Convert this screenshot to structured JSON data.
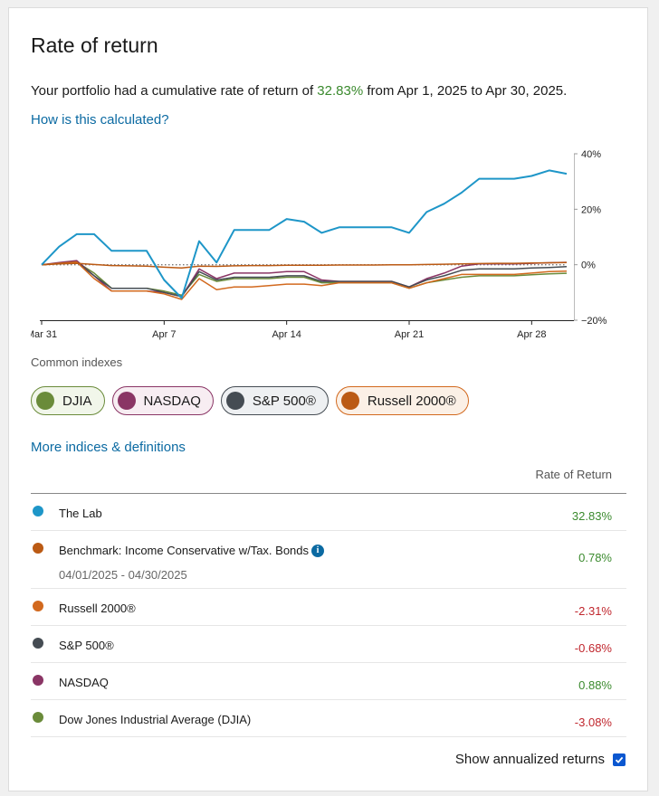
{
  "header": {
    "title": "Rate of return",
    "summary_prefix": "Your portfolio had a cumulative rate of return of ",
    "summary_value": "32.83%",
    "summary_suffix": " from Apr 1, 2025 to Apr 30, 2025.",
    "how_link": "How is this calculated?"
  },
  "chart_data": {
    "type": "line",
    "x_tick_labels": [
      "Mar 31",
      "Apr 7",
      "Apr 14",
      "Apr 21",
      "Apr 28"
    ],
    "y_tick_labels": [
      "40%",
      "20%",
      "0%",
      "−20%"
    ],
    "ylim": [
      -20,
      40
    ],
    "zero_line": true,
    "days": [
      "03/31",
      "04/01",
      "04/02",
      "04/03",
      "04/04",
      "04/05",
      "04/06",
      "04/07",
      "04/08",
      "04/09",
      "04/10",
      "04/11",
      "04/12",
      "04/13",
      "04/14",
      "04/15",
      "04/16",
      "04/17",
      "04/18",
      "04/19",
      "04/20",
      "04/21",
      "04/22",
      "04/23",
      "04/24",
      "04/25",
      "04/26",
      "04/27",
      "04/28",
      "04/29",
      "04/30"
    ],
    "series": [
      {
        "key": "lab",
        "color": "#1e96c8",
        "values": [
          0,
          6.5,
          11,
          11,
          5,
          5,
          5,
          -5.5,
          -12,
          8.5,
          0.8,
          12.5,
          12.5,
          12.5,
          16.5,
          15.5,
          11.5,
          13.5,
          13.5,
          13.5,
          13.5,
          11.5,
          19,
          22,
          26,
          31,
          31,
          31,
          32,
          34,
          32.8
        ]
      },
      {
        "key": "benchmark",
        "color": "#bb5a14",
        "values": [
          0,
          0.3,
          0.5,
          0.1,
          -0.3,
          -0.4,
          -0.5,
          -0.9,
          -1.2,
          -0.5,
          -0.6,
          -0.4,
          -0.3,
          -0.3,
          -0.2,
          -0.2,
          -0.2,
          -0.1,
          -0.1,
          -0.1,
          0,
          0,
          0.1,
          0.2,
          0.3,
          0.4,
          0.5,
          0.5,
          0.6,
          0.7,
          0.78
        ]
      },
      {
        "key": "russell",
        "color": "#d2691e",
        "values": [
          0,
          0.5,
          1,
          -5,
          -9.5,
          -9.5,
          -9.5,
          -10.5,
          -12.5,
          -5,
          -9,
          -8,
          -8,
          -7.5,
          -7,
          -7,
          -7.5,
          -6.5,
          -6.5,
          -6.5,
          -6.5,
          -8.5,
          -6.5,
          -5,
          -3.5,
          -3.5,
          -3.5,
          -3.5,
          -3,
          -2.5,
          -2.31
        ]
      },
      {
        "key": "sp500",
        "color": "#454c53",
        "values": [
          0,
          0.5,
          1,
          -4,
          -8.5,
          -8.5,
          -8.5,
          -10,
          -11.5,
          -2.5,
          -5.5,
          -4.5,
          -4.5,
          -4.5,
          -4,
          -4,
          -6,
          -6,
          -6,
          -6,
          -6,
          -8,
          -5.5,
          -4,
          -2,
          -1.5,
          -1.5,
          -1.5,
          -1.2,
          -1,
          -0.68
        ]
      },
      {
        "key": "nasdaq",
        "color": "#8a3565",
        "values": [
          0,
          0.8,
          1.5,
          -4,
          -9.5,
          -9.5,
          -9.5,
          -10,
          -11.5,
          -1.5,
          -5,
          -3,
          -3,
          -3,
          -2.5,
          -2.5,
          -5.5,
          -6,
          -6,
          -6,
          -6,
          -8,
          -5,
          -3,
          -0.5,
          0.3,
          0.3,
          0.3,
          0.5,
          0.7,
          0.88
        ]
      },
      {
        "key": "djia",
        "color": "#6a8b3a",
        "values": [
          0,
          0.5,
          1,
          -3,
          -8.5,
          -8.5,
          -8.5,
          -9.5,
          -11,
          -3.5,
          -6,
          -5,
          -5,
          -5,
          -4.5,
          -4.5,
          -6.5,
          -6.5,
          -6.5,
          -6.5,
          -6.5,
          -8.5,
          -6.5,
          -5.5,
          -4.5,
          -4,
          -4,
          -4,
          -3.6,
          -3.3,
          -3.08
        ]
      }
    ]
  },
  "indexes": {
    "label": "Common indexes",
    "pills": [
      {
        "label": "DJIA",
        "dot": "#6a8b3a",
        "bg": "#f1f6ea",
        "border": "#6a8b3a"
      },
      {
        "label": "NASDAQ",
        "dot": "#8a3565",
        "bg": "#f7edf2",
        "border": "#8a3565"
      },
      {
        "label": "S&P 500®",
        "dot": "#454c53",
        "bg": "#eef0f2",
        "border": "#454c53"
      },
      {
        "label": "Russell 2000®",
        "dot": "#bb5a14",
        "bg": "#fbf0e6",
        "border": "#d2691e"
      }
    ],
    "more_link": "More indices & definitions"
  },
  "table": {
    "header": "Rate of Return",
    "rows": [
      {
        "name": "The Lab",
        "value": "32.83%",
        "sign": "pos",
        "color": "#1e96c8"
      },
      {
        "name": "Benchmark: Income Conservative w/Tax. Bonds",
        "info": "i",
        "sub": "04/01/2025 - 04/30/2025",
        "value": "0.78%",
        "sign": "pos",
        "color": "#bb5a14"
      },
      {
        "name": "Russell 2000®",
        "value": "-2.31%",
        "sign": "neg",
        "color": "#d2691e"
      },
      {
        "name": "S&P 500®",
        "value": "-0.68%",
        "sign": "neg",
        "color": "#454c53"
      },
      {
        "name": "NASDAQ",
        "value": "0.88%",
        "sign": "pos",
        "color": "#8a3565"
      },
      {
        "name": "Dow Jones Industrial Average (DJIA)",
        "value": "-3.08%",
        "sign": "neg",
        "color": "#6a8b3a"
      }
    ]
  },
  "footer": {
    "annualized_label": "Show annualized returns",
    "annualized_checked": true
  }
}
